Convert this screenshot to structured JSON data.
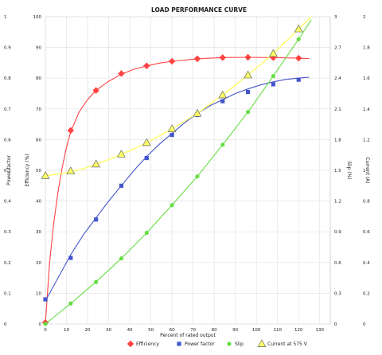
{
  "chart_data": {
    "type": "line",
    "title": "LOAD PERFORMANCE CURVE",
    "xlabel": "Percent of rated output",
    "xlim": [
      0,
      135
    ],
    "xticks": [
      0,
      10,
      20,
      30,
      40,
      50,
      60,
      70,
      80,
      90,
      100,
      110,
      120,
      130
    ],
    "axes": {
      "power_factor": {
        "label": "Power factor",
        "lim": [
          0,
          1
        ],
        "ticks": [
          "0",
          "0.1",
          "0.2",
          "0.3",
          "0.4",
          "0.5",
          "0.6",
          "0.7",
          "0.8",
          "0.9",
          "1"
        ]
      },
      "efficiency": {
        "label": "Efficiency (%)",
        "lim": [
          0,
          100
        ],
        "ticks": [
          "0",
          "10",
          "20",
          "30",
          "40",
          "50",
          "60",
          "70",
          "80",
          "90",
          "100"
        ]
      },
      "slip": {
        "label": "Slip (%)",
        "lim": [
          0,
          3
        ],
        "ticks": [
          "0",
          "0.3",
          "0.6",
          "0.9",
          "1.2",
          "1.5",
          "1.8",
          "2.1",
          "2.4",
          "2.7",
          "3"
        ]
      },
      "current": {
        "label": "Current (A)",
        "lim": [
          0,
          2
        ],
        "ticks": [
          "0",
          "0.2",
          "0.4",
          "0.6",
          "0.8",
          "1",
          "1.2",
          "1.4",
          "1.6",
          "1.8",
          "2"
        ]
      }
    },
    "series": [
      {
        "name": "Efficiency",
        "axis": "efficiency",
        "color": "#ff4444",
        "marker": "diamond",
        "points": [
          [
            0,
            0.5
          ],
          [
            12,
            63
          ],
          [
            24,
            76
          ],
          [
            36,
            81.5
          ],
          [
            48,
            84
          ],
          [
            60,
            85.5
          ],
          [
            72,
            86.3
          ],
          [
            84,
            86.7
          ],
          [
            96,
            86.8
          ],
          [
            108,
            86.7
          ],
          [
            120,
            86.5
          ]
        ],
        "curve": [
          [
            0,
            0
          ],
          [
            2,
            20
          ],
          [
            4,
            33
          ],
          [
            6,
            43
          ],
          [
            8,
            51
          ],
          [
            10,
            57.5
          ],
          [
            12,
            62.5
          ],
          [
            16,
            69
          ],
          [
            20,
            73
          ],
          [
            24,
            76
          ],
          [
            30,
            79
          ],
          [
            36,
            81.3
          ],
          [
            42,
            82.9
          ],
          [
            48,
            84
          ],
          [
            54,
            84.9
          ],
          [
            60,
            85.5
          ],
          [
            72,
            86.3
          ],
          [
            84,
            86.7
          ],
          [
            96,
            86.8
          ],
          [
            108,
            86.7
          ],
          [
            120,
            86.5
          ],
          [
            125,
            86.4
          ]
        ]
      },
      {
        "name": "Power factor",
        "axis": "power_factor",
        "color": "#4455cc",
        "marker": "square",
        "points": [
          [
            0,
            0.08
          ],
          [
            12,
            0.215
          ],
          [
            24,
            0.34
          ],
          [
            36,
            0.45
          ],
          [
            48,
            0.54
          ],
          [
            60,
            0.615
          ],
          [
            72,
            0.68
          ],
          [
            84,
            0.725
          ],
          [
            96,
            0.755
          ],
          [
            108,
            0.78
          ],
          [
            120,
            0.795
          ]
        ],
        "curve": [
          [
            0,
            0.075
          ],
          [
            6,
            0.15
          ],
          [
            12,
            0.225
          ],
          [
            18,
            0.29
          ],
          [
            24,
            0.345
          ],
          [
            30,
            0.4
          ],
          [
            36,
            0.45
          ],
          [
            42,
            0.5
          ],
          [
            48,
            0.545
          ],
          [
            54,
            0.585
          ],
          [
            60,
            0.62
          ],
          [
            66,
            0.655
          ],
          [
            72,
            0.685
          ],
          [
            78,
            0.71
          ],
          [
            84,
            0.73
          ],
          [
            90,
            0.75
          ],
          [
            96,
            0.765
          ],
          [
            102,
            0.778
          ],
          [
            108,
            0.788
          ],
          [
            114,
            0.796
          ],
          [
            120,
            0.8
          ],
          [
            125,
            0.803
          ]
        ]
      },
      {
        "name": "Slip",
        "axis": "slip",
        "color": "#66dd44",
        "marker": "circle",
        "points": [
          [
            0,
            0
          ],
          [
            12,
            0.2
          ],
          [
            24,
            0.41
          ],
          [
            36,
            0.64
          ],
          [
            48,
            0.89
          ],
          [
            60,
            1.16
          ],
          [
            72,
            1.44
          ],
          [
            84,
            1.75
          ],
          [
            96,
            2.07
          ],
          [
            108,
            2.42
          ],
          [
            120,
            2.78
          ]
        ],
        "curve": [
          [
            0,
            0
          ],
          [
            12,
            0.2
          ],
          [
            24,
            0.41
          ],
          [
            36,
            0.64
          ],
          [
            48,
            0.89
          ],
          [
            60,
            1.16
          ],
          [
            72,
            1.44
          ],
          [
            84,
            1.75
          ],
          [
            96,
            2.07
          ],
          [
            108,
            2.42
          ],
          [
            120,
            2.78
          ],
          [
            126,
            2.97
          ]
        ]
      },
      {
        "name": "Current at 575 V",
        "axis": "current",
        "color": "#ffff66",
        "marker": "triangle",
        "points": [
          [
            0,
            0.965
          ],
          [
            12,
            0.995
          ],
          [
            24,
            1.04
          ],
          [
            36,
            1.105
          ],
          [
            48,
            1.18
          ],
          [
            60,
            1.27
          ],
          [
            72,
            1.37
          ],
          [
            84,
            1.49
          ],
          [
            96,
            1.62
          ],
          [
            108,
            1.76
          ],
          [
            120,
            1.92
          ]
        ],
        "curve": [
          [
            0,
            0.965
          ],
          [
            6,
            0.975
          ],
          [
            12,
            0.99
          ],
          [
            18,
            1.01
          ],
          [
            24,
            1.04
          ],
          [
            30,
            1.07
          ],
          [
            36,
            1.105
          ],
          [
            42,
            1.14
          ],
          [
            48,
            1.18
          ],
          [
            54,
            1.225
          ],
          [
            60,
            1.27
          ],
          [
            66,
            1.32
          ],
          [
            72,
            1.37
          ],
          [
            78,
            1.43
          ],
          [
            84,
            1.49
          ],
          [
            90,
            1.555
          ],
          [
            96,
            1.62
          ],
          [
            102,
            1.69
          ],
          [
            108,
            1.76
          ],
          [
            114,
            1.84
          ],
          [
            120,
            1.92
          ],
          [
            126,
            2.0
          ]
        ]
      }
    ],
    "grid": true,
    "legend_position": "bottom-center"
  }
}
